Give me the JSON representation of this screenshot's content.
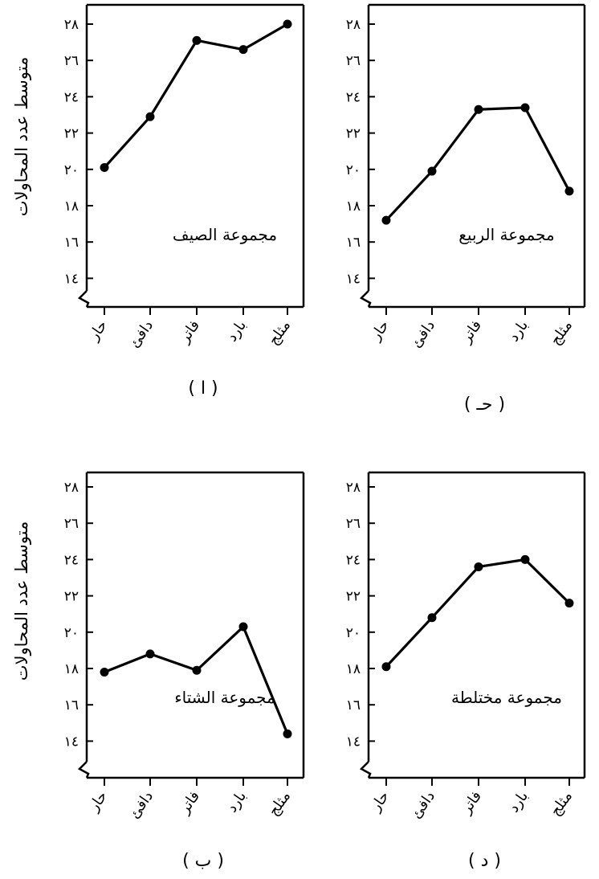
{
  "y_axis_label": "متوسط عدد المحاولات",
  "chart_data": [
    {
      "type": "line",
      "panel_label": "( ا )",
      "annotation": "مجموعة الصيف",
      "categories": [
        "حار",
        "دافئ",
        "فاتر",
        "بارد",
        "مثلج"
      ],
      "values": [
        20.1,
        22.9,
        27.1,
        26.6,
        28.0
      ],
      "yticks": [
        "١٤",
        "١٦",
        "١٨",
        "٢٠",
        "٢٢",
        "٢٤",
        "٢٦",
        "٢٨"
      ],
      "ylim": [
        13,
        29
      ]
    },
    {
      "type": "line",
      "panel_label": "( حـ )",
      "annotation": "مجموعة الربيع",
      "categories": [
        "حار",
        "دافئ",
        "فاتر",
        "بارد",
        "مثلج"
      ],
      "values": [
        17.2,
        19.9,
        23.3,
        23.4,
        18.8
      ],
      "yticks": [
        "١٤",
        "١٦",
        "١٨",
        "٢٠",
        "٢٢",
        "٢٤",
        "٢٦",
        "٢٨"
      ],
      "ylim": [
        13,
        29
      ]
    },
    {
      "type": "line",
      "panel_label": "( ب )",
      "annotation": "مجموعة الشتاء",
      "categories": [
        "حار",
        "دافئ",
        "فاتر",
        "بارد",
        "مثلج"
      ],
      "values": [
        17.8,
        18.8,
        17.9,
        20.3,
        14.4
      ],
      "yticks": [
        "١٤",
        "١٦",
        "١٨",
        "٢٠",
        "٢٢",
        "٢٤",
        "٢٦",
        "٢٨"
      ],
      "ylim": [
        13,
        29
      ]
    },
    {
      "type": "line",
      "panel_label": "( د )",
      "annotation": "مجموعة مختلطة",
      "categories": [
        "حار",
        "دافئ",
        "فاتر",
        "بارد",
        "مثلج"
      ],
      "values": [
        18.1,
        20.8,
        23.6,
        24.0,
        21.6
      ],
      "yticks": [
        "١٤",
        "١٦",
        "١٨",
        "٢٠",
        "٢٢",
        "٢٤",
        "٢٦",
        "٢٨"
      ],
      "ylim": [
        13,
        29
      ]
    }
  ]
}
